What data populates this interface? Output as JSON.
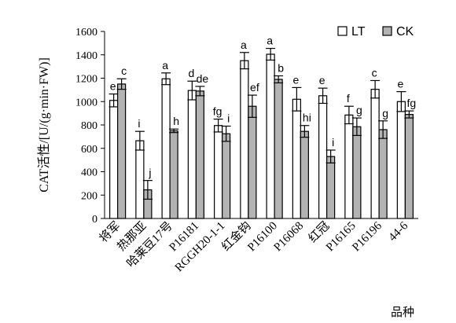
{
  "chart_data": {
    "type": "bar",
    "ylabel": "CAT活性/[U/(g·min·FW)]",
    "xlabel": "品种",
    "ylim": [
      0,
      1600
    ],
    "yticks": [
      0,
      200,
      400,
      600,
      800,
      1000,
      1200,
      1400,
      1600
    ],
    "grid": false,
    "legend_position": "top-right",
    "categories": [
      "将军",
      "热那亚",
      "哈莱豆17号",
      "P16181",
      "RGGH20-1-1",
      "红金钩",
      "P16100",
      "P16068",
      "红冠",
      "P16165",
      "P16196",
      "44-6"
    ],
    "series": [
      {
        "name": "LT",
        "color": "#ffffff",
        "values": [
          1010,
          665,
          1195,
          1095,
          795,
          1350,
          1405,
          1020,
          1050,
          885,
          1105,
          1000
        ],
        "errors": [
          55,
          80,
          50,
          80,
          55,
          70,
          50,
          100,
          65,
          75,
          75,
          85
        ],
        "labels": [
          "e",
          "i",
          "a",
          "d",
          "fg",
          "a",
          "a",
          "e",
          "e",
          "f",
          "c",
          "e"
        ]
      },
      {
        "name": "CK",
        "color": "#b3b3b3",
        "values": [
          1150,
          245,
          750,
          1090,
          725,
          960,
          1190,
          745,
          530,
          785,
          760,
          890
        ],
        "errors": [
          45,
          80,
          15,
          40,
          65,
          95,
          30,
          50,
          55,
          75,
          75,
          30
        ],
        "labels": [
          "c",
          "j",
          "h",
          "de",
          "i",
          "ef",
          "b",
          "hi",
          "i",
          "g",
          "g",
          "fg"
        ]
      }
    ]
  }
}
